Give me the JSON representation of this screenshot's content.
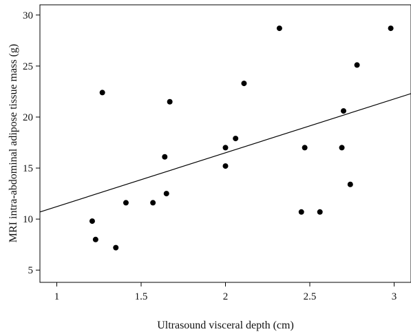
{
  "chart_data": {
    "type": "scatter",
    "xlabel": "Ultrasound visceral depth (cm)",
    "ylabel": "MRI intra-abdominal adipose tissue mass (g)",
    "xlim": [
      0.9,
      3.1
    ],
    "ylim": [
      3.8,
      31.0
    ],
    "x_ticks": [
      "1",
      "1.5",
      "2",
      "2.5",
      "3"
    ],
    "y_ticks": [
      "5",
      "10",
      "15",
      "20",
      "25",
      "30"
    ],
    "grid": false,
    "legend": "none",
    "point_color": "#000000",
    "series": [
      {
        "points": [
          [
            1.21,
            9.8
          ],
          [
            1.23,
            8.0
          ],
          [
            1.27,
            22.4
          ],
          [
            1.35,
            7.2
          ],
          [
            1.41,
            11.6
          ],
          [
            1.57,
            11.6
          ],
          [
            1.64,
            16.1
          ],
          [
            1.65,
            12.5
          ],
          [
            1.67,
            21.5
          ],
          [
            2.0,
            17.0
          ],
          [
            2.0,
            15.2
          ],
          [
            2.06,
            17.9
          ],
          [
            2.11,
            23.3
          ],
          [
            2.32,
            28.7
          ],
          [
            2.45,
            10.7
          ],
          [
            2.47,
            17.0
          ],
          [
            2.56,
            10.7
          ],
          [
            2.69,
            17.0
          ],
          [
            2.7,
            20.6
          ],
          [
            2.74,
            13.4
          ],
          [
            2.78,
            25.1
          ],
          [
            2.98,
            28.7
          ]
        ]
      }
    ],
    "trend_line": {
      "x": [
        0.9,
        3.1
      ],
      "y": [
        10.7,
        22.3
      ]
    }
  }
}
